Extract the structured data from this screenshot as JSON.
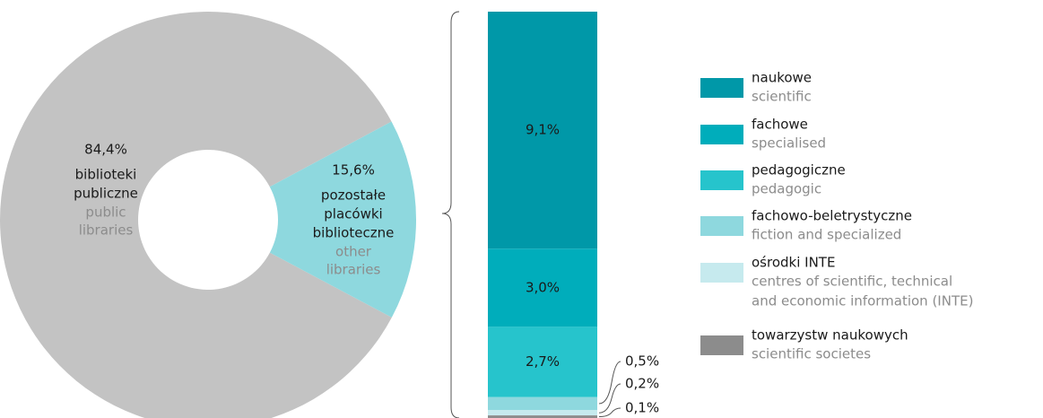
{
  "chart_data": [
    {
      "type": "donut",
      "values": [
        84.4,
        15.6
      ],
      "value_labels": [
        "84,4%",
        "15,6%"
      ],
      "categories": [
        [
          "biblioteki",
          "publiczne"
        ],
        [
          "pozostałe",
          "placówki",
          "biblioteczne"
        ]
      ],
      "categories_en": [
        [
          "public",
          "libraries"
        ],
        [
          "other",
          "libraries"
        ]
      ],
      "colors": [
        "#c3c3c3",
        "#8ed8de"
      ]
    },
    {
      "type": "stacked-bar",
      "series": [
        {
          "name": "naukowe",
          "name_en": [
            "scientific"
          ],
          "color": "#0098a8",
          "values": [
            9.1
          ],
          "value_labels": [
            "9,1%"
          ]
        },
        {
          "name": "fachowe",
          "name_en": [
            "specialised"
          ],
          "color": "#00adbb",
          "values": [
            3.0
          ],
          "value_labels": [
            "3,0%"
          ]
        },
        {
          "name": "pedagogiczne",
          "name_en": [
            "pedagogic"
          ],
          "color": "#26c4cc",
          "values": [
            2.7
          ],
          "value_labels": [
            "2,7%"
          ]
        },
        {
          "name": "fachowo-beletrystyczne",
          "name_en": [
            "fiction and specialized"
          ],
          "color": "#8ed8de",
          "values": [
            0.5
          ],
          "value_labels": [
            "0,5%"
          ]
        },
        {
          "name": "ośrodki INTE",
          "name_en": [
            "centres of scientific, technical",
            "and economic information (INTE)"
          ],
          "color": "#c6eaee",
          "values": [
            0.2
          ],
          "value_labels": [
            "0,2%"
          ]
        },
        {
          "name": "towarzystw naukowych",
          "name_en": [
            "scientific societes"
          ],
          "color": "#8c8c8c",
          "values": [
            0.1
          ],
          "value_labels": [
            "0,1%"
          ]
        }
      ]
    }
  ]
}
